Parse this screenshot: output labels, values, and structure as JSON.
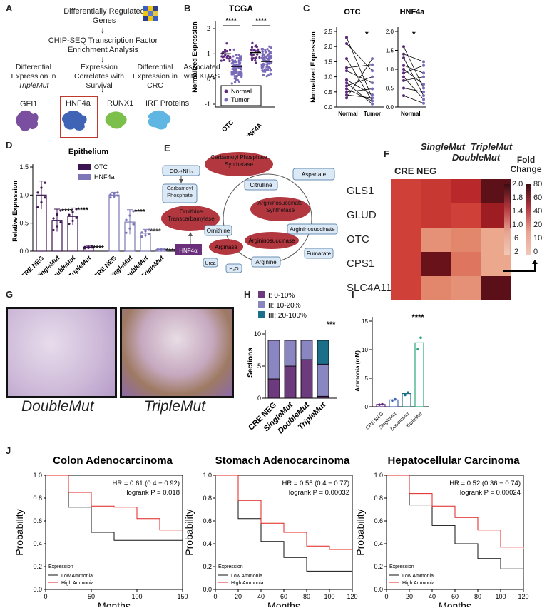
{
  "panels": {
    "A": {
      "letter": "A",
      "title": "Differentially Regulated Genes",
      "step2": "CHIP-SEQ Transcription Factor Enrichment Analysis",
      "criteria": [
        "Differential Expression in",
        "TripleMut",
        "Expression Correlates with Survival",
        "Differential Expression in CRC",
        "Associated with KRAS"
      ],
      "proteins": [
        "GFI1",
        "HNF4a",
        "RUNX1",
        "IRF Proteins"
      ],
      "colors": {
        "gfi1": "#7b4fa0",
        "hnf4a": "#3f63b5",
        "runx1": "#7cbf4b",
        "irf": "#5fb6e3",
        "highlight": "#c0392b"
      }
    },
    "B": {
      "letter": "B",
      "title": "TCGA",
      "ylabel": "Normalized Expression",
      "yticks": [
        "2",
        "1",
        "0",
        "-1"
      ],
      "xticks": [
        "OTC",
        "HNF4A"
      ],
      "sig": [
        "****",
        "****"
      ],
      "legend": [
        "Normal",
        "Tumor"
      ]
    },
    "C": {
      "letter": "C",
      "titles": [
        "OTC",
        "HNF4a"
      ],
      "ylabel": "Normalized Expression",
      "yticks_left": [
        "2.5",
        "2.0",
        "1.5",
        "1.0",
        "0.5",
        "0.0"
      ],
      "yticks_right": [
        "2.0",
        "1.5",
        "1.0",
        "0.5",
        "0.0"
      ],
      "xticks": [
        "Normal",
        "Tumor"
      ],
      "sig": [
        "*",
        "*"
      ]
    },
    "D": {
      "letter": "D",
      "title": "Epithelium",
      "ylabel": "Relative Expression",
      "yticks": [
        "1.5",
        "1.0",
        "0.5",
        "0.0"
      ],
      "legend": [
        "OTC",
        "HNF4a"
      ],
      "xticks": [
        "CRE NEG",
        "SingleMut",
        "DoubleMut",
        "TripleMut",
        "CRE NEG",
        "SingleMut",
        "DoubleMut",
        "TripleMut"
      ],
      "sig": [
        "****",
        "****",
        "****",
        "****",
        "****",
        "****"
      ]
    },
    "E": {
      "letter": "E",
      "labels": {
        "co2": "CO₂+NH₃",
        "cp": "Carbamoyl Phosphate",
        "cps": "Carbamoyl Phosphate Synthetase",
        "aspartate": "Aspartate",
        "citrulline": "Citrulline",
        "ass": "Argininosuccinate Synthetase",
        "otc": "Ornithine Transcarbamylase",
        "ornithine": "Ornithine",
        "argsucc": "Argininosuccinate",
        "hnf4a": "HNF4α",
        "arginase": "Arginase",
        "asl": "Argininosuccinase",
        "urea": "Urea",
        "h2o": "H₂O",
        "arginine": "Arginine",
        "fumarate": "Fumarate"
      }
    },
    "F": {
      "letter": "F",
      "cols": [
        "CRE NEG",
        "SingleMut",
        "DoubleMut",
        "TripleMut"
      ],
      "rows": [
        "GLS1",
        "GLUD",
        "OTC",
        "CPS1",
        "SLC4A11"
      ],
      "legend_title": "Fold Change",
      "scale_left": [
        "2.0",
        "1.8",
        "1.4",
        "1.0",
        ".6",
        ".2"
      ],
      "scale_right": [
        "80",
        "60",
        "40",
        "20",
        "10",
        "0"
      ]
    },
    "G": {
      "letter": "G",
      "labels": [
        "DoubleMut",
        "TripleMut"
      ]
    },
    "H": {
      "letter": "H",
      "legend": [
        "I: 0-10%",
        "II: 10-20%",
        "III: 20-100%"
      ],
      "ylabel": "Sections",
      "yticks": [
        "10",
        "5",
        "0"
      ],
      "xticks": [
        "CRE NEG",
        "SingleMut",
        "DoubleMut",
        "TripleMut"
      ],
      "sig": "***"
    },
    "I": {
      "letter": "I",
      "ylabel": "Ammonia (mM)",
      "yticks": [
        "15",
        "10",
        "5",
        "0"
      ],
      "xticks": [
        "CRE NEG",
        "SingleMut",
        "DoubleMut",
        "TripleMut"
      ],
      "sig": "****"
    },
    "J": {
      "letter": "J",
      "plots": [
        {
          "title": "Colon Adenocarcinoma",
          "hr": "HR = 0.61 (0.4 − 0.92)",
          "p": "logrank P = 0.018",
          "xticks": [
            "0",
            "50",
            "100",
            "150"
          ]
        },
        {
          "title": "Stomach Adenocarcinoma",
          "hr": "HR = 0.55 (0.4 − 0.77)",
          "p": "logrank P = 0.00032",
          "xticks": [
            "0",
            "20",
            "40",
            "60",
            "80",
            "100",
            "120"
          ]
        },
        {
          "title": "Hepatocellular Carcinoma",
          "hr": "HR = 0.52 (0.36 − 0.74)",
          "p": "logrank P = 0.00024",
          "xticks": [
            "0",
            "20",
            "40",
            "60",
            "80",
            "100",
            "120"
          ]
        }
      ],
      "ylabel": "Probability",
      "yticks": [
        "1.0",
        "0.8",
        "0.6",
        "0.4",
        "0.2",
        "0.0"
      ],
      "xlabel": "Months",
      "legend_title": "Expression",
      "legend": [
        "Low Ammonia",
        "High Ammonia"
      ]
    }
  },
  "chart_data": [
    {
      "type": "bar",
      "panel": "D",
      "categories": [
        "CRE NEG",
        "SingleMut",
        "DoubleMut",
        "TripleMut"
      ],
      "series": [
        {
          "name": "OTC",
          "values": [
            1.0,
            0.55,
            0.62,
            0.07
          ]
        },
        {
          "name": "HNF4a",
          "values": [
            1.0,
            0.52,
            0.32,
            0.03
          ]
        }
      ],
      "ylim": [
        0,
        1.5
      ]
    },
    {
      "type": "bar",
      "panel": "H",
      "categories": [
        "CRE NEG",
        "SingleMut",
        "DoubleMut",
        "TripleMut"
      ],
      "series": [
        {
          "name": "I: 0-10%",
          "values": [
            3,
            5,
            6,
            0.3
          ]
        },
        {
          "name": "II: 10-20%",
          "values": [
            6,
            4,
            3,
            5
          ]
        },
        {
          "name": "III: 20-100%",
          "values": [
            0,
            0,
            0,
            3.7
          ]
        }
      ],
      "ylim": [
        0,
        10
      ]
    },
    {
      "type": "bar",
      "panel": "I",
      "categories": [
        "CRE NEG",
        "SingleMut",
        "DoubleMut",
        "TripleMut"
      ],
      "values": [
        0.4,
        1.2,
        2.3,
        11.2
      ],
      "ylim": [
        0,
        15
      ]
    },
    {
      "type": "heatmap",
      "panel": "F",
      "rows": [
        "GLS1",
        "GLUD",
        "OTC",
        "CPS1",
        "SLC4A11"
      ],
      "cols": [
        "CRE NEG",
        "SingleMut",
        "DoubleMut",
        "TripleMut"
      ],
      "values": [
        [
          1.0,
          1.1,
          1.3,
          2.0
        ],
        [
          1.0,
          1.1,
          1.0,
          1.5
        ],
        [
          1.0,
          0.5,
          0.6,
          0.3
        ],
        [
          1.0,
          1.9,
          0.7,
          0.3
        ],
        [
          1.0,
          0.6,
          0.5,
          80
        ]
      ]
    },
    {
      "type": "line",
      "panel": "J1",
      "x": [
        0,
        25,
        50,
        75,
        100,
        125,
        150
      ],
      "series": [
        {
          "name": "Low Ammonia",
          "values": [
            1.0,
            0.72,
            0.5,
            0.43,
            0.43,
            0.43,
            0.43
          ]
        },
        {
          "name": "High Ammonia",
          "values": [
            1.0,
            0.85,
            0.73,
            0.72,
            0.62,
            0.52,
            0.52
          ]
        }
      ],
      "ylim": [
        0,
        1
      ]
    },
    {
      "type": "line",
      "panel": "J2",
      "x": [
        0,
        20,
        40,
        60,
        80,
        100,
        120
      ],
      "series": [
        {
          "name": "Low Ammonia",
          "values": [
            1.0,
            0.62,
            0.42,
            0.28,
            0.16,
            0.16,
            0.16
          ]
        },
        {
          "name": "High Ammonia",
          "values": [
            1.0,
            0.78,
            0.58,
            0.5,
            0.38,
            0.35,
            0.35
          ]
        }
      ],
      "ylim": [
        0,
        1
      ]
    },
    {
      "type": "line",
      "panel": "J3",
      "x": [
        0,
        20,
        40,
        60,
        80,
        100,
        120
      ],
      "series": [
        {
          "name": "Low Ammonia",
          "values": [
            1.0,
            0.74,
            0.56,
            0.4,
            0.27,
            0.18,
            0.1
          ]
        },
        {
          "name": "High Ammonia",
          "values": [
            1.0,
            0.84,
            0.73,
            0.63,
            0.52,
            0.37,
            0.35
          ]
        }
      ],
      "ylim": [
        0,
        1
      ]
    }
  ]
}
